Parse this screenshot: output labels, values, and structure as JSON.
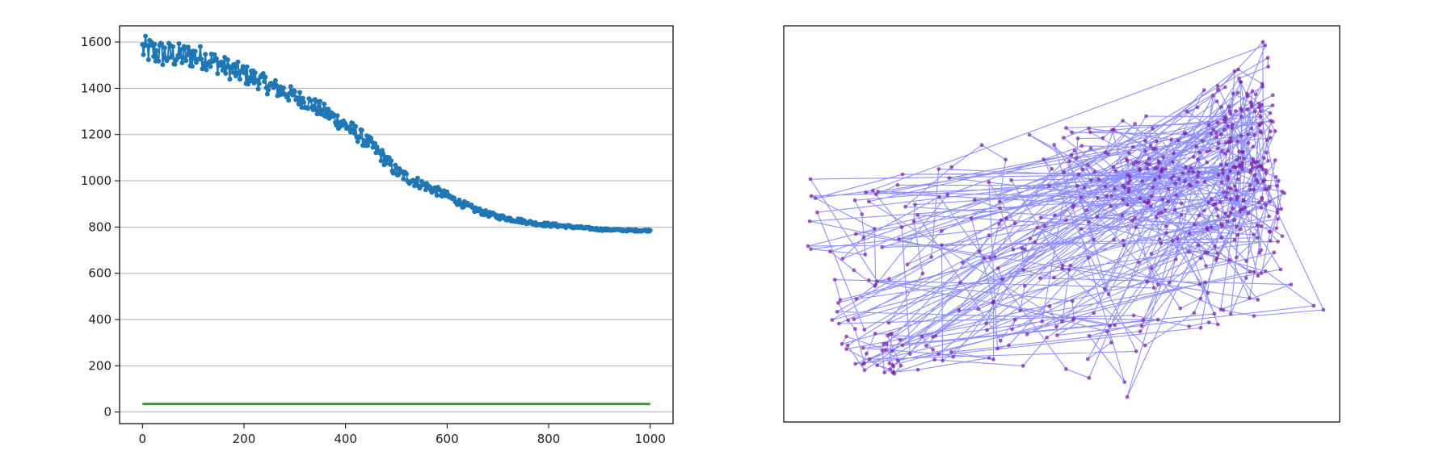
{
  "chart_data": [
    {
      "type": "line",
      "title": "",
      "xlabel": "",
      "ylabel": "",
      "xlim": [
        -45,
        1045
      ],
      "ylim": [
        -50,
        1670
      ],
      "xticks": [
        0,
        200,
        400,
        600,
        800,
        1000
      ],
      "yticks": [
        0,
        200,
        400,
        600,
        800,
        1000,
        1200,
        1400,
        1600
      ],
      "grid": "y-axis",
      "legend": "none",
      "series": [
        {
          "style": "line+markers",
          "color": "#1f77b4",
          "x": [
            0,
            25,
            50,
            75,
            100,
            125,
            150,
            175,
            200,
            225,
            250,
            275,
            300,
            325,
            350,
            375,
            400,
            425,
            450,
            475,
            500,
            525,
            550,
            575,
            600,
            625,
            650,
            675,
            700,
            725,
            750,
            775,
            800,
            825,
            850,
            875,
            900,
            925,
            950,
            975,
            1000
          ],
          "y": [
            1570,
            1555,
            1545,
            1540,
            1540,
            1530,
            1505,
            1480,
            1460,
            1440,
            1410,
            1390,
            1365,
            1340,
            1310,
            1275,
            1240,
            1200,
            1155,
            1100,
            1040,
            1010,
            985,
            960,
            935,
            905,
            880,
            860,
            845,
            835,
            825,
            815,
            810,
            805,
            800,
            795,
            790,
            788,
            786,
            785,
            785
          ],
          "noise": [
            60,
            60,
            60,
            55,
            55,
            50,
            45,
            45,
            45,
            40,
            40,
            40,
            35,
            35,
            35,
            35,
            35,
            35,
            30,
            30,
            28,
            25,
            22,
            20,
            18,
            15,
            14,
            12,
            10,
            10,
            9,
            8,
            8,
            7,
            6,
            5,
            5,
            4,
            4,
            4,
            4
          ]
        },
        {
          "style": "line",
          "color": "#2ca02c",
          "x": [
            0,
            1000
          ],
          "y": [
            35,
            35
          ]
        }
      ]
    },
    {
      "type": "scatter",
      "title": "",
      "xlabel": "",
      "ylabel": "",
      "axis_ticks": "hidden",
      "connections": "tour lines between points",
      "point_color": "#7b1fa2",
      "line_color": "#6a6aff",
      "point_count": 600
    }
  ]
}
